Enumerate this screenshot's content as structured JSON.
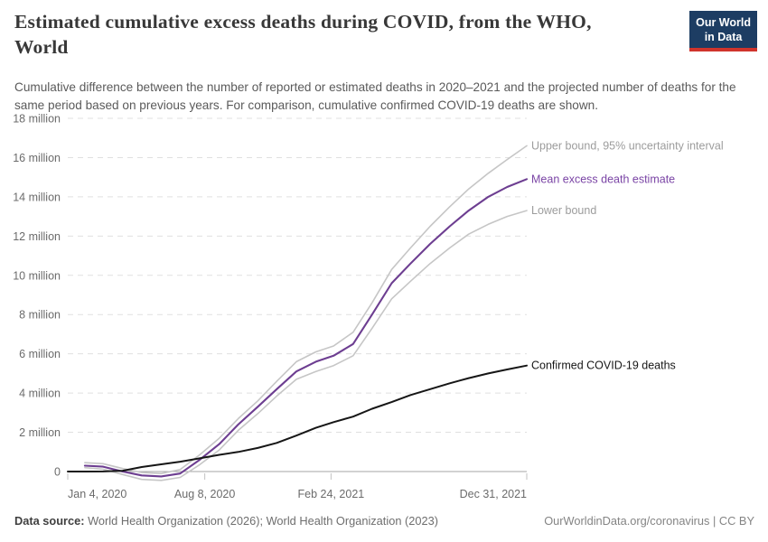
{
  "header": {
    "title_lines": [
      "Estimated cumulative excess deaths during COVID, from the WHO,",
      "World"
    ],
    "subtitle": "Cumulative difference between the number of reported or estimated deaths in 2020–2021 and the projected number of deaths for the same period based on previous years. For comparison, cumulative confirmed COVID-19 deaths are shown.",
    "logo": {
      "line1": "Our World",
      "line2": "in Data",
      "bg": "#1d3d63",
      "accent": "#d0342c"
    }
  },
  "footer": {
    "source_label": "Data source:",
    "source_text": " World Health Organization (2026); World Health Organization (2023)",
    "credit": "OurWorldinData.org/coronavirus | CC BY"
  },
  "chart_data": {
    "type": "line",
    "title": "Estimated cumulative excess deaths during COVID, from the WHO, World",
    "unit": "million deaths",
    "x_range": [
      "2020-01-04",
      "2021-12-31"
    ],
    "ylim": [
      0,
      18
    ],
    "grid": true,
    "legend_position": "right-end-labels",
    "y_ticks": [
      {
        "value": 0,
        "label": "0"
      },
      {
        "value": 2,
        "label": "2 million"
      },
      {
        "value": 4,
        "label": "4 million"
      },
      {
        "value": 6,
        "label": "6 million"
      },
      {
        "value": 8,
        "label": "8 million"
      },
      {
        "value": 10,
        "label": "10 million"
      },
      {
        "value": 12,
        "label": "12 million"
      },
      {
        "value": 14,
        "label": "14 million"
      },
      {
        "value": 16,
        "label": "16 million"
      },
      {
        "value": 18,
        "label": "18 million"
      }
    ],
    "x_ticks": [
      {
        "date": "2020-01-04",
        "label": "Jan 4, 2020",
        "align": "start"
      },
      {
        "date": "2020-08-08",
        "label": "Aug 8, 2020",
        "align": "middle"
      },
      {
        "date": "2021-02-24",
        "label": "Feb 24, 2021",
        "align": "middle"
      },
      {
        "date": "2021-12-31",
        "label": "Dec 31, 2021",
        "align": "end"
      }
    ],
    "series": [
      {
        "name": "upper-bound",
        "label": "Upper bound, 95% uncertainty interval",
        "color": "#c6c6c6",
        "label_color": "#9c9c9c",
        "width": 1.6,
        "dates": [
          "2020-01-31",
          "2020-02-29",
          "2020-03-31",
          "2020-04-30",
          "2020-05-31",
          "2020-06-30",
          "2020-07-31",
          "2020-08-31",
          "2020-09-30",
          "2020-10-31",
          "2020-11-30",
          "2020-12-31",
          "2021-01-31",
          "2021-02-28",
          "2021-03-31",
          "2021-04-30",
          "2021-05-31",
          "2021-06-30",
          "2021-07-31",
          "2021-08-31",
          "2021-09-30",
          "2021-10-31",
          "2021-11-30",
          "2021-12-31"
        ],
        "values": [
          0.45,
          0.4,
          0.15,
          -0.05,
          -0.1,
          0.1,
          0.85,
          1.7,
          2.7,
          3.6,
          4.6,
          5.6,
          6.1,
          6.4,
          7.1,
          8.6,
          10.3,
          11.4,
          12.5,
          13.5,
          14.4,
          15.2,
          15.9,
          16.6
        ]
      },
      {
        "name": "lower-bound",
        "label": "Lower bound",
        "color": "#c6c6c6",
        "label_color": "#9c9c9c",
        "width": 1.6,
        "dates": [
          "2020-01-31",
          "2020-02-29",
          "2020-03-31",
          "2020-04-30",
          "2020-05-31",
          "2020-06-30",
          "2020-07-31",
          "2020-08-31",
          "2020-09-30",
          "2020-10-31",
          "2020-11-30",
          "2020-12-31",
          "2021-01-31",
          "2021-02-28",
          "2021-03-31",
          "2021-04-30",
          "2021-05-31",
          "2021-06-30",
          "2021-07-31",
          "2021-08-31",
          "2021-09-30",
          "2021-10-31",
          "2021-11-30",
          "2021-12-31"
        ],
        "values": [
          0.2,
          0.12,
          -0.15,
          -0.4,
          -0.45,
          -0.3,
          0.35,
          1.1,
          2.1,
          2.95,
          3.85,
          4.7,
          5.1,
          5.4,
          5.9,
          7.3,
          8.8,
          9.7,
          10.6,
          11.4,
          12.1,
          12.6,
          13.0,
          13.3
        ]
      },
      {
        "name": "mean-excess",
        "label": "Mean excess death estimate",
        "color": "#6d3e91",
        "label_color": "#7a44a5",
        "width": 2.1,
        "dates": [
          "2020-01-31",
          "2020-02-29",
          "2020-03-31",
          "2020-04-30",
          "2020-05-31",
          "2020-06-30",
          "2020-07-31",
          "2020-08-31",
          "2020-09-30",
          "2020-10-31",
          "2020-11-30",
          "2020-12-31",
          "2021-01-31",
          "2021-02-28",
          "2021-03-31",
          "2021-04-30",
          "2021-05-31",
          "2021-06-30",
          "2021-07-31",
          "2021-08-31",
          "2021-09-30",
          "2021-10-31",
          "2021-11-30",
          "2021-12-31"
        ],
        "values": [
          0.3,
          0.25,
          0.0,
          -0.2,
          -0.25,
          -0.1,
          0.6,
          1.4,
          2.4,
          3.3,
          4.2,
          5.1,
          5.6,
          5.9,
          6.5,
          8.0,
          9.6,
          10.6,
          11.6,
          12.5,
          13.3,
          14.0,
          14.5,
          14.9
        ]
      },
      {
        "name": "confirmed-deaths",
        "label": "Confirmed COVID-19 deaths",
        "color": "#161616",
        "label_color": "#161616",
        "width": 2,
        "dates": [
          "2020-01-04",
          "2020-01-31",
          "2020-02-29",
          "2020-03-31",
          "2020-04-30",
          "2020-05-31",
          "2020-06-30",
          "2020-07-31",
          "2020-08-31",
          "2020-09-30",
          "2020-10-31",
          "2020-11-30",
          "2020-12-31",
          "2021-01-31",
          "2021-02-28",
          "2021-03-31",
          "2021-04-30",
          "2021-05-31",
          "2021-06-30",
          "2021-07-31",
          "2021-08-31",
          "2021-09-30",
          "2021-10-31",
          "2021-11-30",
          "2021-12-31"
        ],
        "values": [
          0.0,
          0.0,
          0.003,
          0.04,
          0.23,
          0.37,
          0.5,
          0.67,
          0.85,
          1.0,
          1.2,
          1.46,
          1.83,
          2.23,
          2.52,
          2.8,
          3.2,
          3.54,
          3.9,
          4.2,
          4.5,
          4.76,
          5.0,
          5.2,
          5.4
        ]
      }
    ]
  }
}
